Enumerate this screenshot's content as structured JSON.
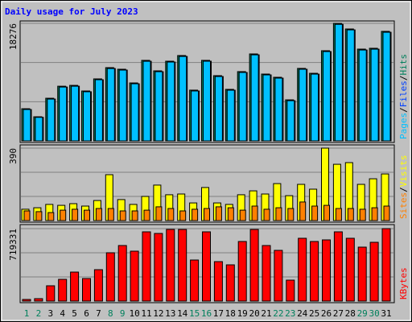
{
  "chart_data": [
    {
      "type": "bar",
      "title": "Daily usage for July 2023",
      "ylim": [
        0,
        18276
      ],
      "yticks": [
        18276
      ],
      "legend_separator": "/",
      "series": [
        {
          "name": "Hits",
          "color": "#00805c",
          "values": [
            5000,
            3750,
            6630,
            8500,
            8630,
            7760,
            9640,
            11390,
            11140,
            9010,
            12520,
            10890,
            12390,
            13270,
            7890,
            12520,
            10140,
            8010,
            10770,
            13520,
            10390,
            9890,
            6380,
            11270,
            10510,
            14020,
            18276,
            17400,
            14270,
            14400,
            17030
          ]
        },
        {
          "name": "Files",
          "color": "#0040ff",
          "values": [
            4880,
            3660,
            6500,
            8370,
            8500,
            7640,
            9510,
            11250,
            11010,
            8880,
            12380,
            10760,
            12260,
            13130,
            7760,
            12390,
            10010,
            7880,
            10640,
            13380,
            10260,
            9760,
            6250,
            11140,
            10380,
            13890,
            18120,
            17260,
            14130,
            14260,
            16890
          ]
        },
        {
          "name": "Pages",
          "color": "#00c0ff",
          "values": [
            4880,
            3660,
            6500,
            8370,
            8500,
            7640,
            9510,
            11250,
            11010,
            8880,
            12380,
            10760,
            12260,
            13130,
            7760,
            12390,
            10010,
            7880,
            10640,
            13380,
            10260,
            9760,
            6250,
            11140,
            10380,
            13890,
            18120,
            17260,
            14130,
            14260,
            16890
          ]
        }
      ]
    },
    {
      "type": "bar",
      "ylim": [
        0,
        390
      ],
      "yticks": [
        390
      ],
      "legend_separator": "/",
      "series": [
        {
          "name": "Visits",
          "color": "#ffff00",
          "values": [
            61,
            69,
            87,
            82,
            91,
            78,
            108,
            247,
            113,
            87,
            130,
            191,
            139,
            143,
            95,
            178,
            95,
            87,
            139,
            160,
            143,
            199,
            134,
            195,
            169,
            390,
            303,
            312,
            195,
            225,
            251
          ]
        },
        {
          "name": "Sites",
          "color": "#ff8000",
          "values": [
            52,
            48,
            43,
            56,
            61,
            56,
            65,
            65,
            52,
            52,
            56,
            74,
            65,
            52,
            61,
            65,
            74,
            69,
            56,
            78,
            61,
            69,
            65,
            100,
            78,
            82,
            65,
            65,
            61,
            69,
            78
          ]
        }
      ]
    },
    {
      "type": "bar",
      "ylim": [
        0,
        719331
      ],
      "yticks": [
        719331
      ],
      "categories": [
        "1",
        "2",
        "3",
        "4",
        "5",
        "6",
        "7",
        "8",
        "9",
        "10",
        "11",
        "12",
        "13",
        "14",
        "15",
        "16",
        "17",
        "18",
        "19",
        "20",
        "21",
        "22",
        "23",
        "24",
        "25",
        "26",
        "27",
        "28",
        "29",
        "30",
        "31"
      ],
      "category_colors": [
        "#00805c",
        "#00805c",
        "#000000",
        "#000000",
        "#000000",
        "#000000",
        "#000000",
        "#00805c",
        "#00805c",
        "#000000",
        "#000000",
        "#000000",
        "#000000",
        "#000000",
        "#00805c",
        "#00805c",
        "#000000",
        "#000000",
        "#000000",
        "#000000",
        "#000000",
        "#00805c",
        "#00805c",
        "#000000",
        "#000000",
        "#000000",
        "#000000",
        "#000000",
        "#00805c",
        "#00805c",
        "#000000"
      ],
      "series": [
        {
          "name": "KBytes",
          "color": "#ff0000",
          "values": [
            15986,
            23979,
            151867,
            215811,
            287748,
            223804,
            311727,
            479580,
            551517,
            495566,
            687398,
            671412,
            711377,
            711000,
            407643,
            687398,
            391657,
            359685,
            591482,
            711000,
            551517,
            503559,
            207818,
            623454,
            591482,
            607468,
            687398,
            623454,
            535531,
            583489,
            719331
          ]
        }
      ]
    }
  ]
}
